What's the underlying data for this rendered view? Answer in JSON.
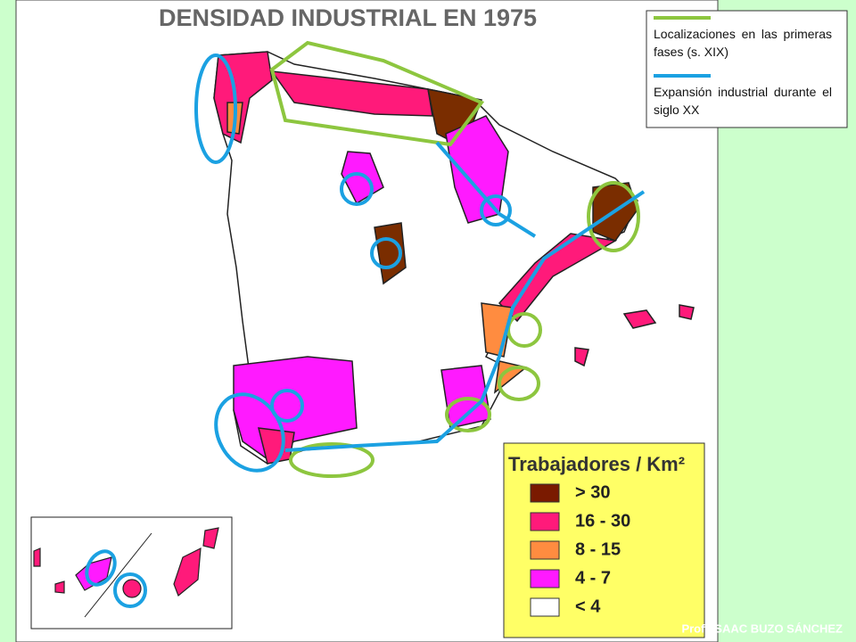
{
  "title": "DENSIDAD INDUSTRIAL EN 1975",
  "annotation_legend": {
    "items": [
      {
        "label": "Localizaciones en las primeras fases (s. XIX)",
        "color": "#8dc63f"
      },
      {
        "label": "Expansión industrial durante el siglo XX",
        "color": "#1ba1e2"
      }
    ]
  },
  "density_legend": {
    "title": "Trabajadores / Km²",
    "items": [
      {
        "label": "> 30",
        "color": "#7a1a00"
      },
      {
        "label": "16 - 30",
        "color": "#ff1a7a"
      },
      {
        "label": "8 - 15",
        "color": "#ff8c40"
      },
      {
        "label": "4 - 7",
        "color": "#ff1aff"
      },
      {
        "label": "< 4",
        "color": "#ffffff"
      }
    ]
  },
  "credit": "Prof. ISAAC BUZO SÁNCHEZ"
}
